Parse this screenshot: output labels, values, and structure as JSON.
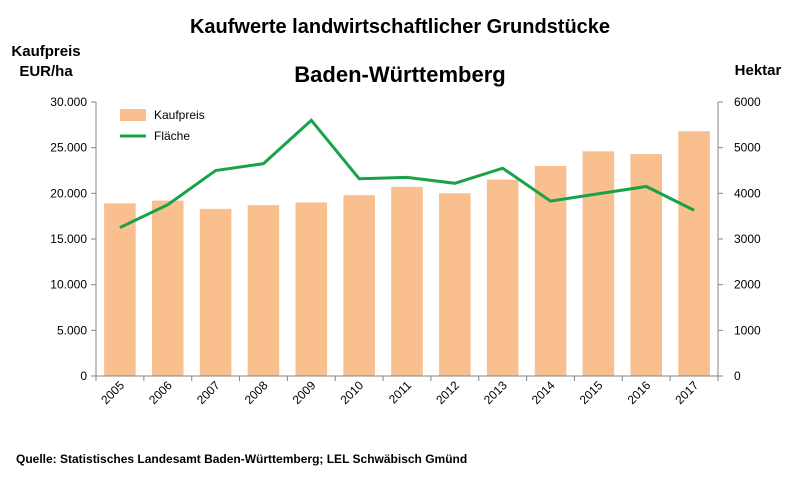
{
  "chart_data": {
    "type": "bar",
    "title": "Kaufwerte landwirtschaftlicher Grundstücke",
    "subtitle": "Baden-Württemberg",
    "ylabel_left": "Kaufpreis EUR/ha",
    "ylabel_right": "Hektar",
    "categories": [
      "2005",
      "2006",
      "2007",
      "2008",
      "2009",
      "2010",
      "2011",
      "2012",
      "2013",
      "2014",
      "2015",
      "2016",
      "2017"
    ],
    "series": [
      {
        "name": "Kaufpreis",
        "type": "bar",
        "axis": "left",
        "color": "#f9bf8f",
        "values": [
          18900,
          19200,
          18300,
          18700,
          19000,
          19800,
          20700,
          20000,
          21500,
          23000,
          24600,
          24300,
          26800
        ]
      },
      {
        "name": "Fläche",
        "type": "line",
        "axis": "right",
        "color": "#19a349",
        "values": [
          3250,
          3750,
          4500,
          4650,
          5600,
          4320,
          4350,
          4220,
          4550,
          3830,
          3990,
          4150,
          3630
        ]
      }
    ],
    "ylim_left": [
      0,
      30000
    ],
    "ylim_right": [
      0,
      6000
    ],
    "yticks_left": [
      "0",
      "5.000",
      "10.000",
      "15.000",
      "20.000",
      "25.000",
      "30.000"
    ],
    "yticks_right": [
      "0",
      "1000",
      "2000",
      "3000",
      "4000",
      "5000",
      "6000"
    ],
    "legend_position": "top-left",
    "grid": false
  },
  "source_text": "Quelle:  Statistisches Landesamt Baden-Württemberg; LEL  Schwäbisch Gmünd"
}
